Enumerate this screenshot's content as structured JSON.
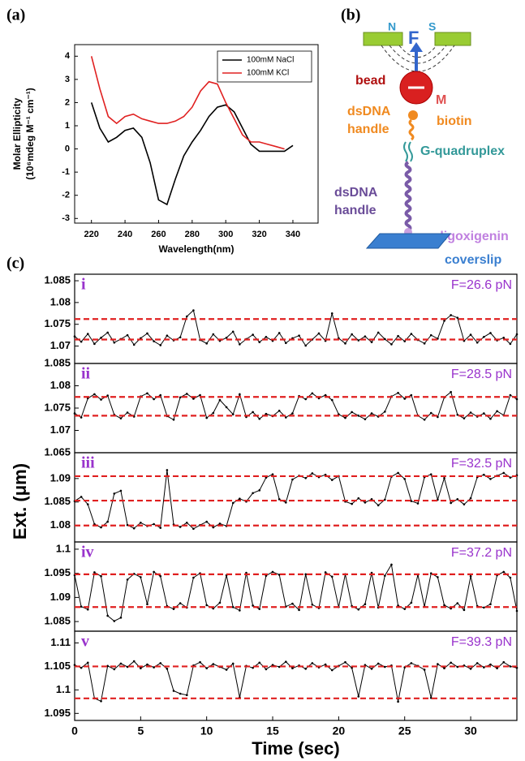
{
  "chart_data": [
    {
      "type": "line",
      "panel_label": "(a)",
      "xlabel": "Wavelength(nm)",
      "ylabel": [
        "Molar Ellipticity",
        "(10⁶mdeg M⁻¹ cm⁻¹)"
      ],
      "x": [
        220,
        225,
        230,
        235,
        240,
        245,
        250,
        255,
        260,
        265,
        270,
        275,
        280,
        285,
        290,
        295,
        300,
        305,
        310,
        315,
        320,
        325,
        330,
        335,
        340
      ],
      "series": [
        {
          "name": "100mM NaCl",
          "color": "#000000",
          "values": [
            2.0,
            0.9,
            0.3,
            0.5,
            0.8,
            0.9,
            0.5,
            -0.6,
            -2.2,
            -2.4,
            -1.3,
            -0.3,
            0.3,
            0.8,
            1.4,
            1.8,
            1.9,
            1.6,
            0.9,
            0.2,
            -0.1,
            -0.1,
            -0.1,
            -0.1,
            0.15
          ]
        },
        {
          "name": "100mM KCl",
          "color": "#e02020",
          "values": [
            4.0,
            2.6,
            1.4,
            1.1,
            1.4,
            1.5,
            1.3,
            1.2,
            1.1,
            1.1,
            1.2,
            1.4,
            1.8,
            2.5,
            2.9,
            2.8,
            2.0,
            1.3,
            0.6,
            0.3,
            0.3,
            0.2,
            0.1,
            0.0,
            null
          ]
        }
      ],
      "xlim": [
        210,
        355
      ],
      "xticks": [
        220,
        240,
        260,
        280,
        300,
        320,
        340
      ],
      "ylim": [
        -3.2,
        4.5
      ],
      "yticks": [
        -3,
        -2,
        -1,
        0,
        1,
        2,
        3,
        4
      ],
      "legend": "upper right"
    },
    {
      "type": "trace",
      "panel_label": "i",
      "annotation": "F=26.6 pN",
      "annotation_color": "#9933cc",
      "color": "#000000",
      "level_color": "#e02020",
      "levels": [
        1.0715,
        1.0762
      ],
      "xlim": [
        0,
        33.5
      ],
      "ylim": [
        1.066,
        1.0865
      ],
      "yticks": [
        1.07,
        1.075,
        1.08,
        1.085
      ],
      "x": [
        0,
        0.5,
        1,
        1.5,
        2,
        2.5,
        3,
        3.5,
        4,
        4.5,
        5,
        5.5,
        6,
        6.5,
        7,
        7.5,
        8,
        8.5,
        9,
        9.5,
        10,
        10.5,
        11,
        11.5,
        12,
        12.5,
        13,
        13.5,
        14,
        14.5,
        15,
        15.5,
        16,
        16.5,
        17,
        17.5,
        18,
        18.5,
        19,
        19.5,
        20,
        20.5,
        21,
        21.5,
        22,
        22.5,
        23,
        23.5,
        24,
        24.5,
        25,
        25.5,
        26,
        26.5,
        27,
        27.5,
        28,
        28.5,
        29,
        29.5,
        30,
        30.5,
        31,
        31.5,
        32,
        32.5,
        33,
        33.5
      ],
      "values": [
        1.0722,
        1.071,
        1.0728,
        1.0705,
        1.0719,
        1.0731,
        1.0708,
        1.0716,
        1.0725,
        1.0703,
        1.0718,
        1.0729,
        1.0711,
        1.0702,
        1.0724,
        1.0713,
        1.072,
        1.0768,
        1.0782,
        1.0714,
        1.0706,
        1.0727,
        1.0712,
        1.0719,
        1.0733,
        1.0704,
        1.0716,
        1.0726,
        1.0709,
        1.0721,
        1.0712,
        1.073,
        1.0707,
        1.0718,
        1.0724,
        1.0701,
        1.0715,
        1.0729,
        1.0712,
        1.0775,
        1.0718,
        1.0706,
        1.0727,
        1.0713,
        1.0722,
        1.0709,
        1.0731,
        1.0716,
        1.0704,
        1.0723,
        1.0711,
        1.0728,
        1.0714,
        1.0706,
        1.0725,
        1.0717,
        1.0758,
        1.0771,
        1.0765,
        1.0712,
        1.0726,
        1.0708,
        1.0721,
        1.073,
        1.0713,
        1.0719,
        1.0705,
        1.0727
      ]
    },
    {
      "type": "trace",
      "panel_label": "ii",
      "annotation": "F=28.5 pN",
      "annotation_color": "#9933cc",
      "color": "#000000",
      "level_color": "#e02020",
      "levels": [
        1.0733,
        1.0775
      ],
      "xlim": [
        0,
        33.5
      ],
      "ylim": [
        1.065,
        1.085
      ],
      "yticks": [
        1.065,
        1.07,
        1.075,
        1.08,
        1.085
      ],
      "x": [
        0,
        0.5,
        1,
        1.5,
        2,
        2.5,
        3,
        3.5,
        4,
        4.5,
        5,
        5.5,
        6,
        6.5,
        7,
        7.5,
        8,
        8.5,
        9,
        9.5,
        10,
        10.5,
        11,
        11.5,
        12,
        12.5,
        13,
        13.5,
        14,
        14.5,
        15,
        15.5,
        16,
        16.5,
        17,
        17.5,
        18,
        18.5,
        19,
        19.5,
        20,
        20.5,
        21,
        21.5,
        22,
        22.5,
        23,
        23.5,
        24,
        24.5,
        25,
        25.5,
        26,
        26.5,
        27,
        27.5,
        28,
        28.5,
        29,
        29.5,
        30,
        30.5,
        31,
        31.5,
        32,
        32.5,
        33,
        33.5
      ],
      "values": [
        1.0738,
        1.0729,
        1.0772,
        1.0781,
        1.0769,
        1.0778,
        1.0735,
        1.0727,
        1.074,
        1.0731,
        1.0776,
        1.0783,
        1.077,
        1.0779,
        1.0732,
        1.0724,
        1.0774,
        1.0782,
        1.0771,
        1.0779,
        1.0728,
        1.0739,
        1.0768,
        1.0752,
        1.0736,
        1.0781,
        1.073,
        1.0741,
        1.0726,
        1.0737,
        1.0732,
        1.0744,
        1.0729,
        1.0738,
        1.0777,
        1.077,
        1.0783,
        1.0772,
        1.0779,
        1.0768,
        1.0736,
        1.0728,
        1.0741,
        1.0733,
        1.0725,
        1.0738,
        1.0731,
        1.0742,
        1.0776,
        1.0784,
        1.0771,
        1.0779,
        1.0733,
        1.0724,
        1.0739,
        1.073,
        1.0774,
        1.0786,
        1.0735,
        1.0727,
        1.074,
        1.0731,
        1.0738,
        1.0726,
        1.0743,
        1.0734,
        1.0779,
        1.077
      ]
    },
    {
      "type": "trace",
      "panel_label": "iii",
      "annotation": "F=32.5 pN",
      "annotation_color": "#9933cc",
      "color": "#000000",
      "level_color": "#e02020",
      "levels": [
        1.08,
        1.0853,
        1.0905
      ],
      "xlim": [
        0,
        33.5
      ],
      "ylim": [
        1.0765,
        1.0955
      ],
      "yticks": [
        1.08,
        1.085,
        1.09
      ],
      "x": [
        0,
        0.5,
        1,
        1.5,
        2,
        2.5,
        3,
        3.5,
        4,
        4.5,
        5,
        5.5,
        6,
        6.5,
        7,
        7.5,
        8,
        8.5,
        9,
        9.5,
        10,
        10.5,
        11,
        11.5,
        12,
        12.5,
        13,
        13.5,
        14,
        14.5,
        15,
        15.5,
        16,
        16.5,
        17,
        17.5,
        18,
        18.5,
        19,
        19.5,
        20,
        20.5,
        21,
        21.5,
        22,
        22.5,
        23,
        23.5,
        24,
        24.5,
        25,
        25.5,
        26,
        26.5,
        27,
        27.5,
        28,
        28.5,
        29,
        29.5,
        30,
        30.5,
        31,
        31.5,
        32,
        32.5,
        33,
        33.5
      ],
      "values": [
        1.0852,
        1.0861,
        1.0845,
        1.0803,
        1.0796,
        1.0808,
        1.0868,
        1.0874,
        1.0801,
        1.0794,
        1.0806,
        1.0799,
        1.0803,
        1.0795,
        1.0918,
        1.0802,
        1.0797,
        1.0806,
        1.0793,
        1.0801,
        1.0808,
        1.0796,
        1.0804,
        1.0799,
        1.0848,
        1.0857,
        1.0851,
        1.0869,
        1.0875,
        1.0902,
        1.0909,
        1.0856,
        1.0849,
        1.0898,
        1.0906,
        1.0901,
        1.0911,
        1.0903,
        1.0908,
        1.0897,
        1.0905,
        1.0851,
        1.0846,
        1.0858,
        1.0849,
        1.0856,
        1.0843,
        1.0855,
        1.0904,
        1.0912,
        1.0899,
        1.0852,
        1.0847,
        1.0903,
        1.0909,
        1.0855,
        1.0901,
        1.0848,
        1.0856,
        1.0845,
        1.0858,
        1.0903,
        1.0908,
        1.0899,
        1.0906,
        1.0912,
        1.0902,
        1.0907
      ]
    },
    {
      "type": "trace",
      "panel_label": "iv",
      "annotation": "F=37.2 pN",
      "annotation_color": "#9933cc",
      "color": "#000000",
      "level_color": "#e02020",
      "levels": [
        1.088,
        1.0948
      ],
      "xlim": [
        0,
        33.5
      ],
      "ylim": [
        1.083,
        1.1015
      ],
      "yticks": [
        1.085,
        1.09,
        1.095,
        1.1
      ],
      "x": [
        0,
        0.5,
        1,
        1.5,
        2,
        2.5,
        3,
        3.5,
        4,
        4.5,
        5,
        5.5,
        6,
        6.5,
        7,
        7.5,
        8,
        8.5,
        9,
        9.5,
        10,
        10.5,
        11,
        11.5,
        12,
        12.5,
        13,
        13.5,
        14,
        14.5,
        15,
        15.5,
        16,
        16.5,
        17,
        17.5,
        18,
        18.5,
        19,
        19.5,
        20,
        20.5,
        21,
        21.5,
        22,
        22.5,
        23,
        23.5,
        24,
        24.5,
        25,
        25.5,
        26,
        26.5,
        27,
        27.5,
        28,
        28.5,
        29,
        29.5,
        30,
        30.5,
        31,
        31.5,
        32,
        32.5,
        33,
        33.5
      ],
      "values": [
        1.0946,
        1.0881,
        1.0875,
        1.0952,
        1.0944,
        1.0862,
        1.0851,
        1.0858,
        1.0937,
        1.0949,
        1.0942,
        1.0886,
        1.0953,
        1.0944,
        1.0882,
        1.0876,
        1.0888,
        1.0879,
        1.0941,
        1.095,
        1.0884,
        1.0877,
        1.0889,
        1.0946,
        1.088,
        1.0873,
        1.0951,
        1.0883,
        1.0876,
        1.0945,
        1.0953,
        1.0947,
        1.0881,
        1.0887,
        1.0874,
        1.0948,
        1.0885,
        1.0878,
        1.0952,
        1.0943,
        1.088,
        1.0948,
        1.0882,
        1.0875,
        1.0886,
        1.0951,
        1.0879,
        1.0945,
        1.0968,
        1.0883,
        1.0876,
        1.0889,
        1.0947,
        1.0881,
        1.095,
        1.0942,
        1.0884,
        1.0877,
        1.0888,
        1.0874,
        1.0944,
        1.0882,
        1.0879,
        1.0886,
        1.0946,
        1.0953,
        1.0941,
        1.0872
      ]
    },
    {
      "type": "trace",
      "panel_label": "v",
      "annotation": "F=39.3 pN",
      "annotation_color": "#9933cc",
      "color": "#000000",
      "level_color": "#e02020",
      "levels": [
        1.0982,
        1.105
      ],
      "xlim": [
        0,
        33.5
      ],
      "ylim": [
        1.0935,
        1.1125
      ],
      "yticks": [
        1.095,
        1.1,
        1.105,
        1.11
      ],
      "xticks": [
        0,
        5,
        10,
        15,
        20,
        25,
        30
      ],
      "xlabel": "Time (sec)",
      "x": [
        0,
        0.5,
        1,
        1.5,
        2,
        2.5,
        3,
        3.5,
        4,
        4.5,
        5,
        5.5,
        6,
        6.5,
        7,
        7.5,
        8,
        8.5,
        9,
        9.5,
        10,
        10.5,
        11,
        11.5,
        12,
        12.5,
        13,
        13.5,
        14,
        14.5,
        15,
        15.5,
        16,
        16.5,
        17,
        17.5,
        18,
        18.5,
        19,
        19.5,
        20,
        20.5,
        21,
        21.5,
        22,
        22.5,
        23,
        23.5,
        24,
        24.5,
        25,
        25.5,
        26,
        26.5,
        27,
        27.5,
        28,
        28.5,
        29,
        29.5,
        30,
        30.5,
        31,
        31.5,
        32,
        32.5,
        33,
        33.5
      ],
      "values": [
        1.1053,
        1.1047,
        1.1058,
        1.0982,
        1.0976,
        1.1051,
        1.1044,
        1.1056,
        1.1049,
        1.1061,
        1.1046,
        1.1054,
        1.1048,
        1.1057,
        1.1045,
        1.0998,
        1.0992,
        1.0989,
        1.1052,
        1.1059,
        1.1046,
        1.1055,
        1.1049,
        1.1043,
        1.1056,
        1.0984,
        1.1051,
        1.1047,
        1.1058,
        1.1044,
        1.1053,
        1.1049,
        1.106,
        1.1046,
        1.1052,
        1.1045,
        1.1057,
        1.1048,
        1.1054,
        1.1042,
        1.1051,
        1.1059,
        1.1047,
        1.0986,
        1.1053,
        1.1045,
        1.1056,
        1.1049,
        1.1052,
        1.0975,
        1.1048,
        1.1057,
        1.1051,
        1.1043,
        1.0983,
        1.1055,
        1.1046,
        1.1058,
        1.1049,
        1.1052,
        1.1045,
        1.1057,
        1.1048,
        1.1054,
        1.1046,
        1.1059,
        1.105,
        1.1047
      ]
    }
  ],
  "panel_c": {
    "label": "(c)",
    "ylabel": "Ext. (μm)"
  },
  "diagram": {
    "label": "(b)",
    "magnet_n": "N",
    "magnet_s": "S",
    "force": "F",
    "magnet": "M",
    "bead": "bead",
    "biotin": "biotin",
    "handle_top": [
      "dsDNA",
      "handle"
    ],
    "g4": "G-quadruplex",
    "handle_bottom": [
      "dsDNA",
      "handle"
    ],
    "digoxigenin": "digoxigenin",
    "coverslip": "coverslip"
  }
}
